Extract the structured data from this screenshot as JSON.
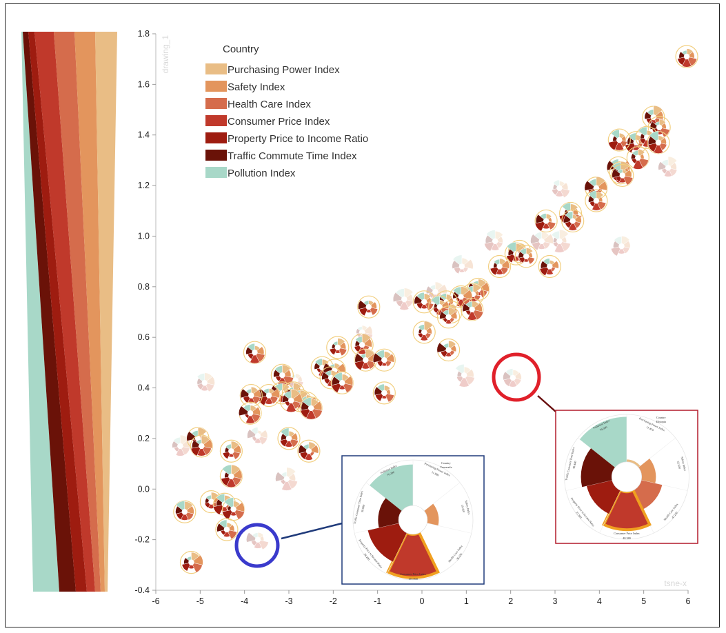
{
  "colors": {
    "purchasing": "#e9bd85",
    "safety": "#e3955d",
    "health": "#d56c4c",
    "consumer": "#c0392b",
    "property": "#9e1c10",
    "traffic": "#6a1208",
    "pollution": "#a8d8c8",
    "glyph_ring": "#f2cf80",
    "red_marker": "#e0202a",
    "blue_marker": "#3a3acc",
    "inset_red_border": "#b21a2a",
    "inset_blue_border": "#1f3a7a",
    "highlight": "#f0a020"
  },
  "legend": {
    "title": "Country",
    "entries": [
      {
        "label": "Purchasing Power Index",
        "color": "#e9bd85"
      },
      {
        "label": "Safety Index",
        "color": "#e3955d"
      },
      {
        "label": "Health Care Index",
        "color": "#d56c4c"
      },
      {
        "label": "Consumer Price Index",
        "color": "#c0392b"
      },
      {
        "label": "Property Price to Income Ratio",
        "color": "#9e1c10"
      },
      {
        "label": "Traffic Commute Time Index",
        "color": "#6a1208"
      },
      {
        "label": "Pollution Index",
        "color": "#a8d8c8"
      }
    ]
  },
  "chart_data": {
    "type": "scatter",
    "xlabel": "tsne-x",
    "ylabel": "drawing_1",
    "xlim": [
      -6,
      6
    ],
    "ylim": [
      -0.4,
      1.8
    ],
    "xticks": [
      "-6",
      "-5",
      "-4",
      "-3",
      "-2",
      "-1",
      "0",
      "1",
      "2",
      "3",
      "4",
      "5",
      "6"
    ],
    "yticks": [
      "-0.4",
      "-0.2",
      "0.0",
      "0.2",
      "0.4",
      "0.6",
      "0.8",
      "1.0",
      "1.2",
      "1.4",
      "1.6",
      "1.8"
    ],
    "points": [
      {
        "x": 5.97,
        "y": 1.71
      },
      {
        "x": 5.22,
        "y": 1.47
      },
      {
        "x": 5.35,
        "y": 1.43
      },
      {
        "x": 4.83,
        "y": 1.37
      },
      {
        "x": 5.07,
        "y": 1.39
      },
      {
        "x": 5.33,
        "y": 1.37
      },
      {
        "x": 4.45,
        "y": 1.38
      },
      {
        "x": 4.87,
        "y": 1.31
      },
      {
        "x": 4.43,
        "y": 1.27
      },
      {
        "x": 4.48,
        "y": 1.25
      },
      {
        "x": 4.52,
        "y": 1.24
      },
      {
        "x": 3.93,
        "y": 1.19
      },
      {
        "x": 3.93,
        "y": 1.14
      },
      {
        "x": 3.35,
        "y": 1.09
      },
      {
        "x": 3.4,
        "y": 1.06
      },
      {
        "x": 2.8,
        "y": 1.06
      },
      {
        "x": 2.2,
        "y": 0.94
      },
      {
        "x": 2.12,
        "y": 0.93
      },
      {
        "x": 2.35,
        "y": 0.92
      },
      {
        "x": 1.75,
        "y": 0.88
      },
      {
        "x": 2.88,
        "y": 0.88
      },
      {
        "x": 1.27,
        "y": 0.79
      },
      {
        "x": 1.15,
        "y": 0.77
      },
      {
        "x": 0.88,
        "y": 0.76
      },
      {
        "x": 0.55,
        "y": 0.74
      },
      {
        "x": 0.05,
        "y": 0.74
      },
      {
        "x": 0.65,
        "y": 0.7
      },
      {
        "x": 0.4,
        "y": 0.72
      },
      {
        "x": 1.13,
        "y": 0.71
      },
      {
        "x": 0.6,
        "y": 0.68
      },
      {
        "x": -1.2,
        "y": 0.72
      },
      {
        "x": 0.05,
        "y": 0.62
      },
      {
        "x": 0.6,
        "y": 0.55
      },
      {
        "x": -1.9,
        "y": 0.56
      },
      {
        "x": -1.35,
        "y": 0.57
      },
      {
        "x": -1.27,
        "y": 0.51
      },
      {
        "x": -0.85,
        "y": 0.51
      },
      {
        "x": -2.25,
        "y": 0.48
      },
      {
        "x": -1.97,
        "y": 0.47
      },
      {
        "x": -2.05,
        "y": 0.44
      },
      {
        "x": -1.8,
        "y": 0.42
      },
      {
        "x": -3.77,
        "y": 0.54
      },
      {
        "x": -3.15,
        "y": 0.45
      },
      {
        "x": -3.15,
        "y": 0.38
      },
      {
        "x": -2.9,
        "y": 0.38
      },
      {
        "x": -3.45,
        "y": 0.37
      },
      {
        "x": -2.75,
        "y": 0.35
      },
      {
        "x": -2.6,
        "y": 0.34
      },
      {
        "x": -2.5,
        "y": 0.32
      },
      {
        "x": -2.95,
        "y": 0.35
      },
      {
        "x": -3.85,
        "y": 0.37
      },
      {
        "x": -3.87,
        "y": 0.3
      },
      {
        "x": -3.0,
        "y": 0.2
      },
      {
        "x": -2.55,
        "y": 0.15
      },
      {
        "x": -0.85,
        "y": 0.38
      },
      {
        "x": -5.05,
        "y": 0.2
      },
      {
        "x": -4.97,
        "y": 0.17
      },
      {
        "x": -4.3,
        "y": 0.15
      },
      {
        "x": -4.3,
        "y": 0.05
      },
      {
        "x": -4.75,
        "y": -0.05
      },
      {
        "x": -4.45,
        "y": -0.06
      },
      {
        "x": -4.25,
        "y": -0.08
      },
      {
        "x": -5.35,
        "y": -0.09
      },
      {
        "x": -4.4,
        "y": -0.16
      },
      {
        "x": -5.2,
        "y": -0.29
      }
    ],
    "faint_points": [
      {
        "x": 5.55,
        "y": 1.27
      },
      {
        "x": 3.1,
        "y": 1.19
      },
      {
        "x": 4.5,
        "y": 0.96
      },
      {
        "x": 1.65,
        "y": 0.98
      },
      {
        "x": 2.7,
        "y": 0.98
      },
      {
        "x": 3.1,
        "y": 0.98
      },
      {
        "x": 0.9,
        "y": 0.88
      },
      {
        "x": 0.3,
        "y": 0.78
      },
      {
        "x": -0.4,
        "y": 0.75
      },
      {
        "x": -1.35,
        "y": 0.62
      },
      {
        "x": 0.95,
        "y": 0.45
      },
      {
        "x": -4.9,
        "y": 0.42
      },
      {
        "x": -2.85,
        "y": 0.43
      },
      {
        "x": -3.7,
        "y": 0.21
      },
      {
        "x": -5.45,
        "y": 0.17
      },
      {
        "x": -3.05,
        "y": 0.04
      },
      {
        "x": -3.7,
        "y": -0.2
      },
      {
        "x": 2.05,
        "y": 0.44
      }
    ]
  },
  "colorbar": {
    "labels": []
  },
  "inset_blue": {
    "title": "Country",
    "country": "Venezuela",
    "labels": [
      {
        "text": "Pollution Index",
        "value": "70.390"
      },
      {
        "text": "Purchasing Power Index",
        "value": "11.880"
      },
      {
        "text": "Safety Index",
        "value": "19.350"
      },
      {
        "text": "Health Care Index",
        "value": "38.320"
      },
      {
        "text": "Consumer Price Index",
        "value": "155.000"
      },
      {
        "text": "Property Price to Income Ratio",
        "value": "38.200"
      },
      {
        "text": "Traffic Commute Time Index",
        "value": "39.880"
      }
    ]
  },
  "inset_red": {
    "title": "Country",
    "country": "Ethiopia",
    "labels": [
      {
        "text": "Pollution Index",
        "value": "79.590"
      },
      {
        "text": "Purchasing Power Index",
        "value": "11.450"
      },
      {
        "text": "Safety Index",
        "value": "32.500"
      },
      {
        "text": "Health Care Index",
        "value": "47.240"
      },
      {
        "text": "Consumer Price Index",
        "value": "48.380"
      },
      {
        "text": "Property Price to Income Ratio",
        "value": "27.300"
      },
      {
        "text": "Traffic Commute Time Index",
        "value": "48.440"
      }
    ]
  }
}
